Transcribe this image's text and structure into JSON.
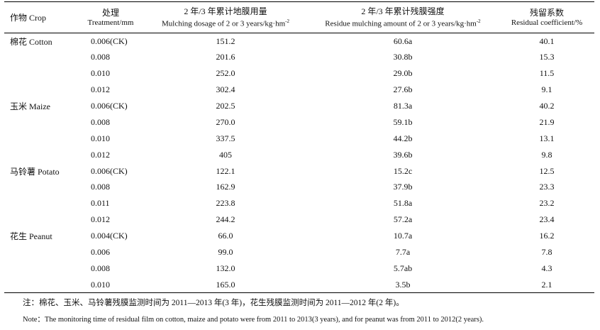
{
  "headers": {
    "crop": "作物 Crop",
    "treatment_cn": "处理",
    "treatment_en": "Treatment/mm",
    "dosage_cn": "2 年/3 年累计地膜用量",
    "dosage_en": "Mulching dosage of 2 or 3 years/kg·hm",
    "dosage_sup": "-2",
    "residue_cn": "2 年/3 年累计残膜强度",
    "residue_en": "Residue mulching amount of 2 or 3 years/kg·hm",
    "residue_sup": "-2",
    "coef_cn": "残留系数",
    "coef_en": "Residual coefficient/%"
  },
  "rows": [
    {
      "crop": "棉花 Cotton",
      "treatment": "0.006(CK)",
      "dosage": "151.2",
      "residue": "60.6a",
      "coef": "40.1"
    },
    {
      "crop": "",
      "treatment": "0.008",
      "dosage": "201.6",
      "residue": "30.8b",
      "coef": "15.3"
    },
    {
      "crop": "",
      "treatment": "0.010",
      "dosage": "252.0",
      "residue": "29.0b",
      "coef": "11.5"
    },
    {
      "crop": "",
      "treatment": "0.012",
      "dosage": "302.4",
      "residue": "27.6b",
      "coef": "9.1"
    },
    {
      "crop": "玉米 Maize",
      "treatment": "0.006(CK)",
      "dosage": "202.5",
      "residue": "81.3a",
      "coef": "40.2"
    },
    {
      "crop": "",
      "treatment": "0.008",
      "dosage": "270.0",
      "residue": "59.1b",
      "coef": "21.9"
    },
    {
      "crop": "",
      "treatment": "0.010",
      "dosage": "337.5",
      "residue": "44.2b",
      "coef": "13.1"
    },
    {
      "crop": "",
      "treatment": "0.012",
      "dosage": "405",
      "residue": "39.6b",
      "coef": "9.8"
    },
    {
      "crop": "马铃薯 Potato",
      "treatment": "0.006(CK)",
      "dosage": "122.1",
      "residue": "15.2c",
      "coef": "12.5"
    },
    {
      "crop": "",
      "treatment": "0.008",
      "dosage": "162.9",
      "residue": "37.9b",
      "coef": "23.3"
    },
    {
      "crop": "",
      "treatment": "0.011",
      "dosage": "223.8",
      "residue": "51.8a",
      "coef": "23.2"
    },
    {
      "crop": "",
      "treatment": "0.012",
      "dosage": "244.2",
      "residue": "57.2a",
      "coef": "23.4"
    },
    {
      "crop": "花生 Peanut",
      "treatment": "0.004(CK)",
      "dosage": "66.0",
      "residue": "10.7a",
      "coef": "16.2"
    },
    {
      "crop": "",
      "treatment": "0.006",
      "dosage": "99.0",
      "residue": "7.7a",
      "coef": "7.8"
    },
    {
      "crop": "",
      "treatment": "0.008",
      "dosage": "132.0",
      "residue": "5.7ab",
      "coef": "4.3"
    },
    {
      "crop": "",
      "treatment": "0.010",
      "dosage": "165.0",
      "residue": "3.5b",
      "coef": "2.1"
    }
  ],
  "notes": {
    "cn": "注：棉花、玉米、马铃薯残膜监测时间为 2011—2013 年(3 年)，花生残膜监测时间为 2011—2012 年(2 年)。",
    "en": "Note：The monitoring time of residual film on cotton, maize and potato were from 2011 to 2013(3 years), and for peanut was from 2011 to 2012(2 years)."
  }
}
